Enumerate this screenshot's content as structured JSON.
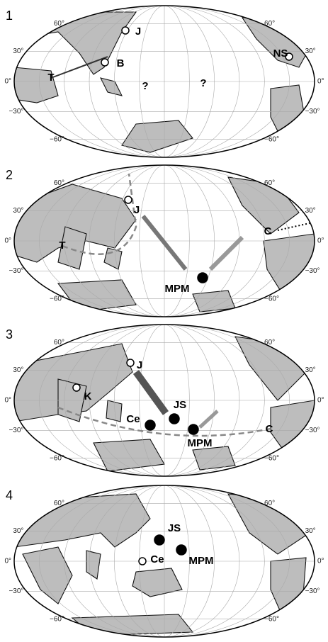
{
  "panels": [
    {
      "number": "1",
      "lat_labels": [
        "60°",
        "30°",
        "0°",
        "−30°",
        "−60°"
      ],
      "sites": [
        {
          "label": "J"
        },
        {
          "label": "B"
        },
        {
          "label": "T"
        },
        {
          "label": "NS"
        },
        {
          "label": "?"
        },
        {
          "label": "?"
        }
      ]
    },
    {
      "number": "2",
      "lat_labels": [
        "60°",
        "30°",
        "0°",
        "−30°",
        "−60°"
      ],
      "sites": [
        {
          "label": "J"
        },
        {
          "label": "T"
        },
        {
          "label": "C"
        },
        {
          "label": "MPM"
        }
      ]
    },
    {
      "number": "3",
      "lat_labels": [
        "60°",
        "30°",
        "0°",
        "−30°",
        "−60°"
      ],
      "sites": [
        {
          "label": "J"
        },
        {
          "label": "K"
        },
        {
          "label": "C"
        },
        {
          "label": "JS"
        },
        {
          "label": "Ce"
        },
        {
          "label": "MPM"
        }
      ]
    },
    {
      "number": "4",
      "lat_labels": [
        "60°",
        "30°",
        "0°",
        "−30°",
        "−60°"
      ],
      "sites": [
        {
          "label": "JS"
        },
        {
          "label": "Ce"
        },
        {
          "label": "MPM"
        }
      ]
    }
  ]
}
